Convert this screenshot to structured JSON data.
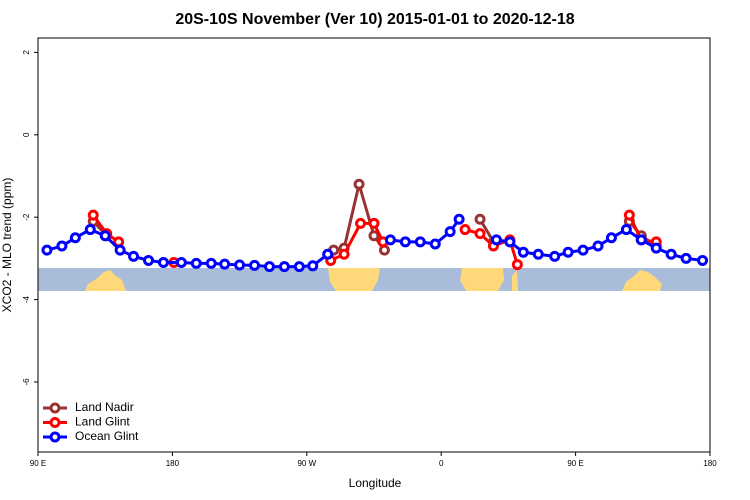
{
  "chart_data": {
    "type": "line",
    "title": "20S-10S November (Ver 10)   2015-01-01 to 2020-12-18",
    "x_label": "Longitude",
    "y_label": "XCO2 - MLO trend (ppm)",
    "xlim": [
      90,
      540
    ],
    "xticks": [
      {
        "value": 90,
        "label": "90 E"
      },
      180,
      {
        "value": 270,
        "label": "90 W"
      },
      {
        "value": 360,
        "label": "0"
      },
      {
        "value": 450,
        "label": "90 E"
      },
      {
        "value": 540,
        "label": "180"
      }
    ],
    "ylim": [
      -7.7,
      2.35
    ],
    "yticks": [
      2,
      0,
      -2,
      -4,
      -6
    ],
    "legend": "bottom-left",
    "series": [
      {
        "name": "Land Nadir",
        "color": "#993333",
        "x": [
          127,
          136,
          null,
          288,
          295,
          305,
          315,
          322,
          null,
          386,
          395,
          null,
          486,
          494,
          504
        ],
        "values": [
          -2.1,
          -2.45,
          null,
          -2.8,
          -2.75,
          -1.2,
          -2.45,
          -2.8,
          null,
          -2.05,
          -2.6,
          null,
          -2.1,
          -2.45,
          -2.7
        ]
      },
      {
        "name": "Land Glint",
        "color": "#ff0000",
        "x": [
          127,
          136,
          144,
          null,
          181,
          null,
          286,
          295,
          306,
          315,
          321,
          null,
          376,
          386,
          395,
          406,
          411,
          null,
          486,
          494,
          504
        ],
        "values": [
          -1.95,
          -2.4,
          -2.6,
          null,
          -3.1,
          null,
          -3.05,
          -2.9,
          -2.15,
          -2.15,
          -2.6,
          null,
          -2.3,
          -2.4,
          -2.7,
          -2.55,
          -3.15,
          null,
          -1.95,
          -2.55,
          -2.6
        ]
      },
      {
        "name": "Ocean Glint",
        "color": "#0000ff",
        "x": [
          96,
          106,
          115,
          125,
          135,
          145,
          154,
          164,
          174,
          186,
          196,
          206,
          215,
          225,
          235,
          245,
          255,
          265,
          274,
          284,
          null,
          326,
          336,
          346,
          356,
          366,
          372,
          null,
          397,
          406,
          415,
          425,
          436,
          445,
          455,
          465,
          474,
          484,
          494,
          504,
          514,
          524,
          535
        ],
        "values": [
          -2.8,
          -2.7,
          -2.5,
          -2.3,
          -2.45,
          -2.8,
          -2.95,
          -3.05,
          -3.1,
          -3.1,
          -3.12,
          -3.12,
          -3.14,
          -3.16,
          -3.17,
          -3.2,
          -3.2,
          -3.2,
          -3.18,
          -2.9,
          null,
          -2.55,
          -2.6,
          -2.6,
          -2.65,
          -2.35,
          -2.05,
          null,
          -2.55,
          -2.6,
          -2.85,
          -2.9,
          -2.95,
          -2.85,
          -2.8,
          -2.7,
          -2.5,
          -2.3,
          -2.55,
          -2.75,
          -2.9,
          -3.0,
          -3.05
        ]
      }
    ]
  }
}
